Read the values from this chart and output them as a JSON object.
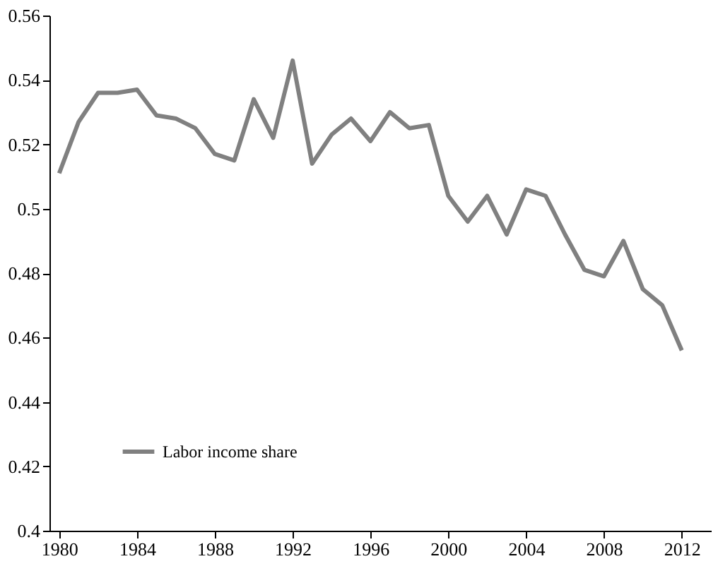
{
  "chart_data": {
    "type": "line",
    "x": [
      1980,
      1981,
      1982,
      1983,
      1984,
      1985,
      1986,
      1987,
      1988,
      1989,
      1990,
      1991,
      1992,
      1993,
      1994,
      1995,
      1996,
      1997,
      1998,
      1999,
      2000,
      2001,
      2002,
      2003,
      2004,
      2005,
      2006,
      2007,
      2008,
      2009,
      2010,
      2011,
      2012
    ],
    "series": [
      {
        "name": "Labor income share",
        "color": "#808080",
        "values": [
          0.511,
          0.527,
          0.536,
          0.536,
          0.537,
          0.529,
          0.528,
          0.525,
          0.517,
          0.515,
          0.534,
          0.522,
          0.546,
          0.514,
          0.523,
          0.528,
          0.521,
          0.53,
          0.525,
          0.526,
          0.504,
          0.496,
          0.504,
          0.492,
          0.506,
          0.504,
          0.492,
          0.481,
          0.479,
          0.49,
          0.475,
          0.47,
          0.456
        ]
      }
    ],
    "xlim": [
      1979.5,
      2013.5
    ],
    "xticks": [
      1980,
      1984,
      1988,
      1992,
      1996,
      2000,
      2004,
      2008,
      2012
    ],
    "ylim": [
      0.4,
      0.56
    ],
    "yticks": [
      0.4,
      0.42,
      0.44,
      0.46,
      0.48,
      0.5,
      0.52,
      0.54,
      0.56
    ],
    "grid": false,
    "legend": "bottom left",
    "marker": "none",
    "line_style": "solid"
  }
}
